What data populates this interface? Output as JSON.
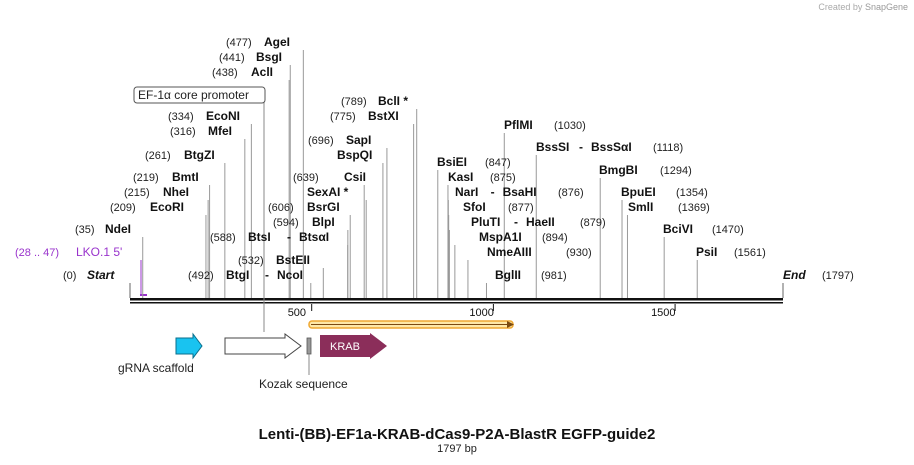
{
  "credit": {
    "prefix": "Created by",
    "brand": "SnapGene"
  },
  "title": "Lenti-(BB)-EF1a-KRAB-dCas9-P2A-BlastR EGFP-guide2",
  "length_label": "1797 bp",
  "sequence_length": 1797,
  "start_label": {
    "pos": "(0)",
    "name": "Start"
  },
  "end_label": {
    "name": "End",
    "pos": "(1797)"
  },
  "ticks": [
    {
      "value": 500,
      "label": "500"
    },
    {
      "value": 1000,
      "label": "1000"
    },
    {
      "value": 1500,
      "label": "1500"
    }
  ],
  "primer": {
    "pos": "(28 .. 47)",
    "name": "LKO.1 5'",
    "color": "#9933cc"
  },
  "feature_label": "EF-1α core promoter",
  "sites_left": [
    {
      "pos": "(477)",
      "name": "AgeI",
      "loc": 477
    },
    {
      "pos": "(441)",
      "name": "BsgI",
      "loc": 441
    },
    {
      "pos": "(438)",
      "name": "AclI",
      "loc": 438
    },
    {
      "pos": "(334)",
      "name": "EcoNI",
      "loc": 334
    },
    {
      "pos": "(316)",
      "name": "MfeI",
      "loc": 316
    },
    {
      "pos": "(261)",
      "name": "BtgZI",
      "loc": 261
    },
    {
      "pos": "(219)",
      "name": "BmtI",
      "loc": 219
    },
    {
      "pos": "(215)",
      "name": "NheI",
      "loc": 215
    },
    {
      "pos": "(209)",
      "name": "EcoRI",
      "loc": 209
    },
    {
      "pos": "(35)",
      "name": "NdeI",
      "loc": 35
    }
  ],
  "sites_mid": [
    {
      "pos": "(789)",
      "name": "BclI *",
      "loc": 789
    },
    {
      "pos": "(775)",
      "name": "BstXI",
      "loc": 775
    },
    {
      "pos": "(696)",
      "name": "SapI",
      "loc": 696
    },
    {
      "name": "BspQI",
      "loc": 696
    },
    {
      "pos": "(639)",
      "name": "CsiI",
      "loc": 639
    },
    {
      "name": "SexAI *",
      "loc": 639
    },
    {
      "pos": "(606)",
      "name": "BsrGI",
      "loc": 606
    },
    {
      "pos": "(594)",
      "name": "BlpI",
      "loc": 594
    },
    {
      "pos": "(588)",
      "name": "BtsI",
      "sep": "-",
      "name2": "BtsαI",
      "loc": 588
    },
    {
      "pos": "(532)",
      "name": "BstEII",
      "loc": 532
    },
    {
      "pos": "(492)",
      "name": "BtgI",
      "sep": "-",
      "name2": "NcoI",
      "loc": 492
    }
  ],
  "sites_right": [
    {
      "name": "PflMI",
      "pos": "(1030)",
      "loc": 1030
    },
    {
      "name": "BssSI",
      "sep": "-",
      "name2": "BssSαI",
      "pos": "(1118)",
      "loc": 1118
    },
    {
      "name": "BmgBI",
      "pos": "(1294)",
      "loc": 1294
    },
    {
      "name": "BpuEI",
      "pos": "(1354)",
      "loc": 1354
    },
    {
      "name": "SmlI",
      "pos": "(1369)",
      "loc": 1369
    },
    {
      "name": "BciVI",
      "pos": "(1470)",
      "loc": 1470
    },
    {
      "name": "PsiI",
      "pos": "(1561)",
      "loc": 1561
    },
    {
      "name": "BsiEI",
      "pos": "(847)",
      "loc": 847
    },
    {
      "name": "KasI",
      "pos": "(875)",
      "loc": 875
    },
    {
      "name": "NarI",
      "sep": "-",
      "name2": "BsaHI",
      "pos": "(876)",
      "loc": 876
    },
    {
      "name": "SfoI",
      "pos": "(877)",
      "loc": 877
    },
    {
      "name": "PluTI",
      "sep": "-",
      "name2": "HaeII",
      "pos": "(879)",
      "loc": 879
    },
    {
      "name": "MspA1I",
      "pos": "(894)",
      "loc": 894
    },
    {
      "name": "NmeAIII",
      "pos": "(930)",
      "loc": 930
    },
    {
      "name": "BglII",
      "pos": "(981)",
      "loc": 981
    }
  ],
  "features": [
    {
      "name": "gRNA scaffold",
      "color": "#19c3f0"
    },
    {
      "name": "EF-1α core promoter",
      "color": "#ffffff"
    },
    {
      "name": "Kozak sequence",
      "color": "#999999"
    },
    {
      "name": "KRAB",
      "color": "#8b2e5a"
    }
  ],
  "orf_color": "#f0a830",
  "accent_site_color": "#111111"
}
